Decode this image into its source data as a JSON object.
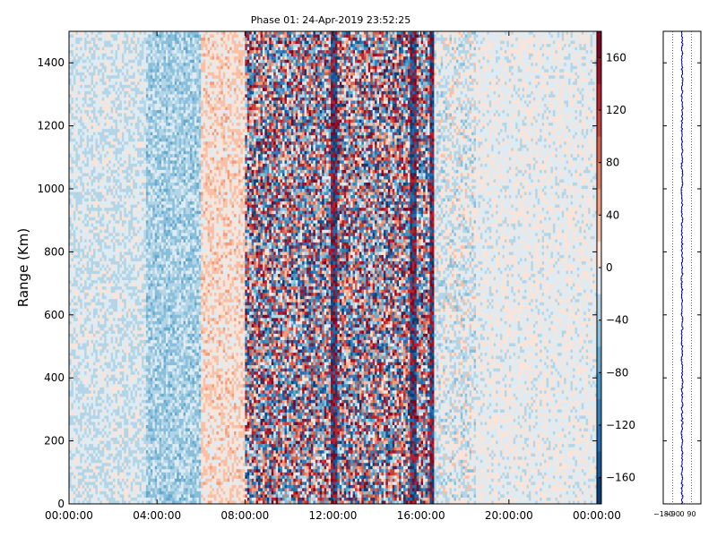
{
  "chart_data": [
    {
      "type": "heatmap",
      "title": "Phase 01: 24-Apr-2019 23:52:25",
      "ylabel": "Range (Km)",
      "xlabel": "",
      "xlim": [
        "00:00:00",
        "24:00:00"
      ],
      "ylim": [
        0,
        1500
      ],
      "x_tick_labels": [
        "00:00:00",
        "04:00:00",
        "08:00:00",
        "12:00:00",
        "16:00:00",
        "20:00:00",
        "00:00:00"
      ],
      "x_tick_hours": [
        0,
        4,
        8,
        12,
        16,
        20,
        24
      ],
      "y_ticks": [
        0,
        200,
        400,
        600,
        800,
        1000,
        1200,
        1400
      ],
      "colorbar": {
        "range": [
          -180,
          180
        ],
        "tick_labels": [
          "−160",
          "−120",
          "−80",
          "−40",
          "0",
          "40",
          "80",
          "120",
          "160"
        ],
        "tick_values": [
          -160,
          -120,
          -80,
          -40,
          0,
          40,
          80,
          120,
          160
        ],
        "levels": 18,
        "colormap": "RdBu_r",
        "low_color": "#053061",
        "mid_color": "#f7f7f7",
        "high_color": "#67001f"
      },
      "time_bands": [
        {
          "start_hour": 0.0,
          "end_hour": 3.5,
          "mean_phase": -15,
          "spread": 25
        },
        {
          "start_hour": 3.5,
          "end_hour": 6.0,
          "mean_phase": -35,
          "spread": 30
        },
        {
          "start_hour": 6.0,
          "end_hour": 8.0,
          "mean_phase": 15,
          "spread": 30
        },
        {
          "start_hour": 8.0,
          "end_hour": 16.5,
          "mean_phase": 0,
          "spread": 170
        },
        {
          "start_hour": 16.5,
          "end_hour": 18.5,
          "mean_phase": -10,
          "spread": 35
        },
        {
          "start_hour": 18.5,
          "end_hour": 24.0,
          "mean_phase": -5,
          "spread": 20
        }
      ],
      "strong_columns_hours": [
        12.0,
        12.1,
        15.6,
        15.7,
        16.5
      ]
    },
    {
      "type": "line",
      "title": "",
      "xlabel": "",
      "ylabel": "",
      "xlim": [
        -180,
        180
      ],
      "ylim": [
        0,
        1500
      ],
      "x_tick_labels": [
        "−180",
        "−90",
        "0",
        "90"
      ],
      "x_tick_values": [
        -180,
        -90,
        0,
        90
      ],
      "grid": "vertical dotted",
      "series_color": "#0000aa",
      "profile_center": 0
    }
  ]
}
